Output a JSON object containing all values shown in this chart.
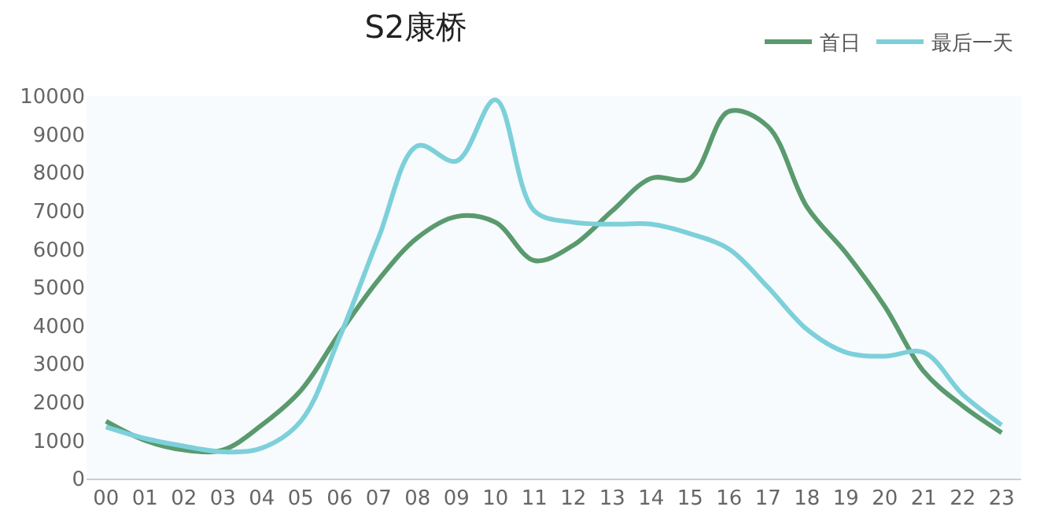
{
  "chart_data": {
    "type": "line",
    "title": "S2康桥",
    "categories": [
      "00",
      "01",
      "02",
      "03",
      "04",
      "05",
      "06",
      "07",
      "08",
      "09",
      "10",
      "11",
      "12",
      "13",
      "14",
      "15",
      "16",
      "17",
      "18",
      "19",
      "20",
      "21",
      "22",
      "23"
    ],
    "series": [
      {
        "name": "首日",
        "color": "#5a9a6e",
        "values": [
          1500,
          1000,
          750,
          750,
          1400,
          2300,
          3800,
          5200,
          6300,
          6850,
          6700,
          5700,
          6100,
          7000,
          7850,
          7850,
          9600,
          9200,
          7100,
          5900,
          4500,
          2800,
          1900,
          1200
        ]
      },
      {
        "name": "最后一天",
        "color": "#7dd0da",
        "values": [
          1350,
          1050,
          850,
          700,
          800,
          1500,
          3700,
          6300,
          8700,
          8300,
          9900,
          7000,
          6700,
          6650,
          6650,
          6400,
          6000,
          5000,
          3900,
          3300,
          3200,
          3300,
          2200,
          1400
        ]
      }
    ],
    "ylim": [
      0,
      10000
    ],
    "yticks": [
      0,
      1000,
      2000,
      3000,
      4000,
      5000,
      6000,
      7000,
      8000,
      9000,
      10000
    ],
    "grid": false,
    "legend": "top right",
    "marker": "none",
    "line_style": "solid"
  }
}
